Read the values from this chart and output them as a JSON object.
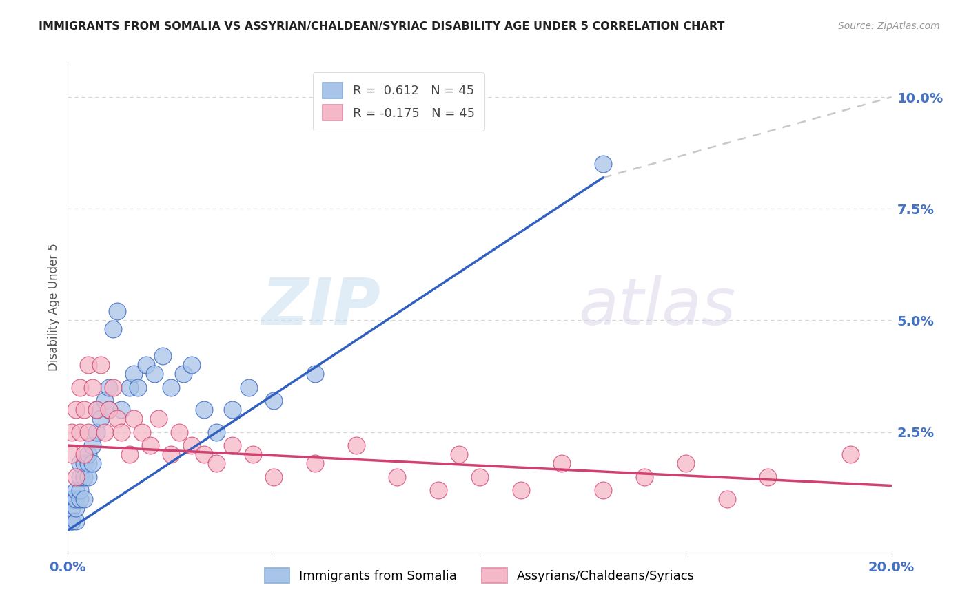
{
  "title": "IMMIGRANTS FROM SOMALIA VS ASSYRIAN/CHALDEAN/SYRIAC DISABILITY AGE UNDER 5 CORRELATION CHART",
  "source": "Source: ZipAtlas.com",
  "ylabel": "Disability Age Under 5",
  "xlim": [
    0.0,
    0.2
  ],
  "ylim": [
    -0.002,
    0.108
  ],
  "yticks_right": [
    0.025,
    0.05,
    0.075,
    0.1
  ],
  "ytick_right_labels": [
    "2.5%",
    "5.0%",
    "7.5%",
    "10.0%"
  ],
  "r_somalia": 0.612,
  "n_somalia": 45,
  "r_assyrian": -0.175,
  "n_assyrian": 45,
  "blue_color": "#a8c4e8",
  "pink_color": "#f5b8c8",
  "blue_line_color": "#3060c0",
  "pink_line_color": "#d04070",
  "dashed_line_color": "#c8c8c8",
  "watermark_zip": "ZIP",
  "watermark_atlas": "atlas",
  "legend_label_somalia": "Immigrants from Somalia",
  "legend_label_assyrian": "Assyrians/Chaldeans/Syriacs",
  "somalia_x": [
    0.001,
    0.001,
    0.001,
    0.001,
    0.002,
    0.002,
    0.002,
    0.002,
    0.003,
    0.003,
    0.003,
    0.003,
    0.004,
    0.004,
    0.004,
    0.005,
    0.005,
    0.005,
    0.006,
    0.006,
    0.007,
    0.007,
    0.008,
    0.009,
    0.01,
    0.01,
    0.011,
    0.012,
    0.013,
    0.015,
    0.016,
    0.017,
    0.019,
    0.021,
    0.023,
    0.025,
    0.028,
    0.03,
    0.033,
    0.036,
    0.04,
    0.044,
    0.05,
    0.06,
    0.13
  ],
  "somalia_y": [
    0.005,
    0.005,
    0.008,
    0.01,
    0.005,
    0.008,
    0.01,
    0.012,
    0.01,
    0.012,
    0.015,
    0.018,
    0.01,
    0.015,
    0.018,
    0.015,
    0.018,
    0.02,
    0.018,
    0.022,
    0.025,
    0.03,
    0.028,
    0.032,
    0.03,
    0.035,
    0.048,
    0.052,
    0.03,
    0.035,
    0.038,
    0.035,
    0.04,
    0.038,
    0.042,
    0.035,
    0.038,
    0.04,
    0.03,
    0.025,
    0.03,
    0.035,
    0.032,
    0.038,
    0.085
  ],
  "assyrian_x": [
    0.001,
    0.001,
    0.002,
    0.002,
    0.003,
    0.003,
    0.004,
    0.004,
    0.005,
    0.005,
    0.006,
    0.007,
    0.008,
    0.009,
    0.01,
    0.011,
    0.012,
    0.013,
    0.015,
    0.016,
    0.018,
    0.02,
    0.022,
    0.025,
    0.027,
    0.03,
    0.033,
    0.036,
    0.04,
    0.045,
    0.05,
    0.06,
    0.07,
    0.08,
    0.09,
    0.095,
    0.1,
    0.11,
    0.12,
    0.13,
    0.14,
    0.15,
    0.16,
    0.17,
    0.19
  ],
  "assyrian_y": [
    0.02,
    0.025,
    0.015,
    0.03,
    0.025,
    0.035,
    0.02,
    0.03,
    0.025,
    0.04,
    0.035,
    0.03,
    0.04,
    0.025,
    0.03,
    0.035,
    0.028,
    0.025,
    0.02,
    0.028,
    0.025,
    0.022,
    0.028,
    0.02,
    0.025,
    0.022,
    0.02,
    0.018,
    0.022,
    0.02,
    0.015,
    0.018,
    0.022,
    0.015,
    0.012,
    0.02,
    0.015,
    0.012,
    0.018,
    0.012,
    0.015,
    0.018,
    0.01,
    0.015,
    0.02
  ],
  "blue_trend_x": [
    0.0,
    0.13
  ],
  "blue_trend_y": [
    0.003,
    0.082
  ],
  "pink_trend_x": [
    0.0,
    0.2
  ],
  "pink_trend_y": [
    0.022,
    0.013
  ]
}
